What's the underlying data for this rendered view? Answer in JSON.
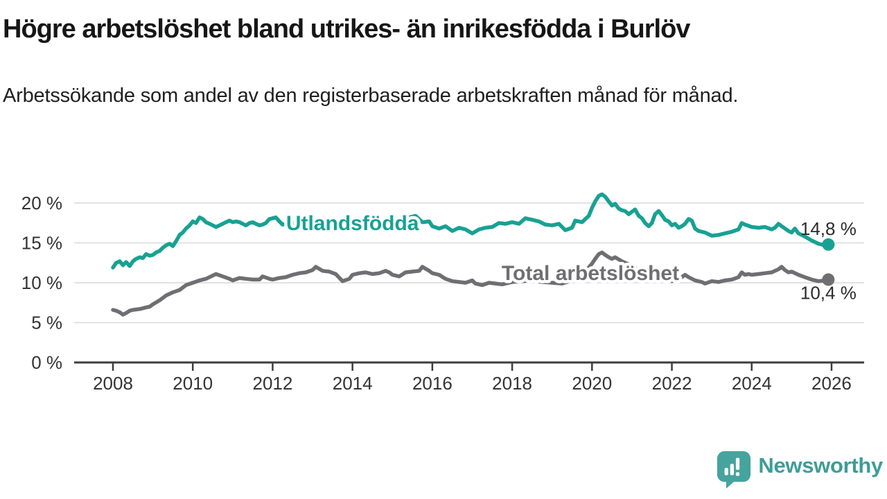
{
  "header": {
    "title": "Högre arbetslöshet bland utrikes- än inrikesfödda i Burlöv",
    "subtitle": "Arbetssökande som andel av den registerbaserade arbetskraften månad för månad."
  },
  "chart_data": {
    "type": "line",
    "title": "Högre arbetslöshet bland utrikes- än inrikesfödda i Burlöv",
    "subtitle": "Arbetssökande som andel av den registerbaserade arbetskraften månad för månad.",
    "grid": true,
    "legend_position": "inline-labels",
    "x_axis": {
      "label": "",
      "ticks": [
        2008,
        2010,
        2012,
        2014,
        2016,
        2018,
        2020,
        2022,
        2024,
        2026
      ],
      "tick_labels": [
        "2008",
        "2010",
        "2012",
        "2014",
        "2016",
        "2018",
        "2020",
        "2022",
        "2024",
        "2026"
      ],
      "range": [
        2007.05,
        2026.8
      ]
    },
    "y_axis": {
      "label": "",
      "unit": "%",
      "ticks": [
        0,
        5,
        10,
        15,
        20
      ],
      "tick_labels": [
        "0 %",
        "5 %",
        "10 %",
        "15 %",
        "20 %"
      ],
      "range": [
        0,
        22
      ]
    },
    "colors": {
      "utlandsfodda": "#18a193",
      "total": "#6f6f73",
      "grid": "#d9d9d9",
      "axis": "#3d3d3d",
      "tick_text": "#333333",
      "value_text": "#2b2b2b"
    },
    "series": [
      {
        "id": "total",
        "name": "Total arbetslöshet",
        "color": "#6f6f73",
        "inline_label": {
          "year": 2019.96,
          "value": 10.35
        },
        "end_label": "10,4 %",
        "end_value": 10.4,
        "value_label_dy": 28,
        "points": [
          [
            2008.0,
            6.6
          ],
          [
            2008.08,
            6.5
          ],
          [
            2008.17,
            6.3
          ],
          [
            2008.25,
            6.0
          ],
          [
            2008.33,
            6.2
          ],
          [
            2008.42,
            6.5
          ],
          [
            2008.5,
            6.6
          ],
          [
            2008.67,
            6.7
          ],
          [
            2008.83,
            6.9
          ],
          [
            2008.92,
            7.0
          ],
          [
            2009.0,
            7.3
          ],
          [
            2009.17,
            7.8
          ],
          [
            2009.33,
            8.4
          ],
          [
            2009.5,
            8.8
          ],
          [
            2009.67,
            9.1
          ],
          [
            2009.83,
            9.7
          ],
          [
            2010.0,
            10.0
          ],
          [
            2010.17,
            10.3
          ],
          [
            2010.33,
            10.5
          ],
          [
            2010.5,
            10.9
          ],
          [
            2010.58,
            11.1
          ],
          [
            2010.75,
            10.8
          ],
          [
            2010.92,
            10.5
          ],
          [
            2011.0,
            10.3
          ],
          [
            2011.17,
            10.6
          ],
          [
            2011.33,
            10.5
          ],
          [
            2011.5,
            10.4
          ],
          [
            2011.67,
            10.4
          ],
          [
            2011.75,
            10.8
          ],
          [
            2011.92,
            10.5
          ],
          [
            2012.0,
            10.4
          ],
          [
            2012.17,
            10.6
          ],
          [
            2012.33,
            10.7
          ],
          [
            2012.5,
            11.0
          ],
          [
            2012.67,
            11.2
          ],
          [
            2012.83,
            11.3
          ],
          [
            2013.0,
            11.6
          ],
          [
            2013.08,
            12.0
          ],
          [
            2013.25,
            11.5
          ],
          [
            2013.42,
            11.4
          ],
          [
            2013.58,
            11.1
          ],
          [
            2013.75,
            10.2
          ],
          [
            2013.92,
            10.5
          ],
          [
            2014.0,
            11.0
          ],
          [
            2014.17,
            11.2
          ],
          [
            2014.33,
            11.3
          ],
          [
            2014.5,
            11.1
          ],
          [
            2014.67,
            11.2
          ],
          [
            2014.83,
            11.5
          ],
          [
            2014.92,
            11.3
          ],
          [
            2015.0,
            11.0
          ],
          [
            2015.17,
            10.8
          ],
          [
            2015.33,
            11.3
          ],
          [
            2015.5,
            11.4
          ],
          [
            2015.67,
            11.5
          ],
          [
            2015.75,
            12.0
          ],
          [
            2015.92,
            11.5
          ],
          [
            2016.0,
            11.2
          ],
          [
            2016.17,
            11.0
          ],
          [
            2016.33,
            10.5
          ],
          [
            2016.5,
            10.2
          ],
          [
            2016.67,
            10.1
          ],
          [
            2016.83,
            10.0
          ],
          [
            2017.0,
            10.3
          ],
          [
            2017.08,
            9.9
          ],
          [
            2017.25,
            9.7
          ],
          [
            2017.42,
            10.0
          ],
          [
            2017.58,
            9.9
          ],
          [
            2017.75,
            9.8
          ],
          [
            2017.92,
            10.0
          ],
          [
            2018.0,
            10.1
          ],
          [
            2018.25,
            10.2
          ],
          [
            2018.5,
            10.3
          ],
          [
            2018.75,
            10.1
          ],
          [
            2019.0,
            10.0
          ],
          [
            2019.25,
            9.9
          ],
          [
            2019.5,
            10.3
          ],
          [
            2019.75,
            10.9
          ],
          [
            2020.0,
            12.4
          ],
          [
            2020.08,
            13.0
          ],
          [
            2020.17,
            13.6
          ],
          [
            2020.25,
            13.8
          ],
          [
            2020.33,
            13.5
          ],
          [
            2020.42,
            13.2
          ],
          [
            2020.5,
            13.0
          ],
          [
            2020.58,
            13.2
          ],
          [
            2020.75,
            12.7
          ],
          [
            2020.92,
            12.3
          ],
          [
            2021.0,
            12.0
          ],
          [
            2021.17,
            11.6
          ],
          [
            2021.33,
            11.2
          ],
          [
            2021.5,
            10.9
          ],
          [
            2021.67,
            10.6
          ],
          [
            2021.83,
            10.4
          ],
          [
            2022.0,
            10.2
          ],
          [
            2022.08,
            10.4
          ],
          [
            2022.25,
            10.7
          ],
          [
            2022.33,
            11.0
          ],
          [
            2022.42,
            10.7
          ],
          [
            2022.58,
            10.3
          ],
          [
            2022.75,
            10.1
          ],
          [
            2022.83,
            9.9
          ],
          [
            2023.0,
            10.2
          ],
          [
            2023.17,
            10.1
          ],
          [
            2023.33,
            10.3
          ],
          [
            2023.5,
            10.4
          ],
          [
            2023.67,
            10.7
          ],
          [
            2023.75,
            11.3
          ],
          [
            2023.83,
            11.0
          ],
          [
            2023.92,
            11.1
          ],
          [
            2024.0,
            11.0
          ],
          [
            2024.17,
            11.1
          ],
          [
            2024.33,
            11.2
          ],
          [
            2024.5,
            11.3
          ],
          [
            2024.67,
            11.7
          ],
          [
            2024.75,
            12.0
          ],
          [
            2024.83,
            11.6
          ],
          [
            2024.92,
            11.3
          ],
          [
            2025.0,
            11.4
          ],
          [
            2025.17,
            11.0
          ],
          [
            2025.33,
            10.7
          ],
          [
            2025.5,
            10.4
          ],
          [
            2025.67,
            10.2
          ],
          [
            2025.83,
            10.3
          ],
          [
            2025.92,
            10.4
          ]
        ]
      },
      {
        "id": "utlandsfodda",
        "name": "Utlandsfödda",
        "color": "#18a193",
        "inline_label": {
          "year": 2014.0,
          "value": 16.6
        },
        "end_label": "14,8 %",
        "end_value": 14.8,
        "value_label_dy": -14,
        "points": [
          [
            2008.0,
            11.9
          ],
          [
            2008.08,
            12.5
          ],
          [
            2008.17,
            12.7
          ],
          [
            2008.25,
            12.2
          ],
          [
            2008.33,
            12.6
          ],
          [
            2008.42,
            12.1
          ],
          [
            2008.5,
            12.7
          ],
          [
            2008.58,
            13.0
          ],
          [
            2008.67,
            13.2
          ],
          [
            2008.75,
            13.1
          ],
          [
            2008.83,
            13.6
          ],
          [
            2008.92,
            13.4
          ],
          [
            2009.0,
            13.5
          ],
          [
            2009.08,
            13.8
          ],
          [
            2009.17,
            14.0
          ],
          [
            2009.25,
            14.4
          ],
          [
            2009.33,
            14.7
          ],
          [
            2009.42,
            14.9
          ],
          [
            2009.5,
            14.6
          ],
          [
            2009.58,
            15.2
          ],
          [
            2009.67,
            16.0
          ],
          [
            2009.75,
            16.3
          ],
          [
            2009.83,
            16.8
          ],
          [
            2009.92,
            17.2
          ],
          [
            2010.0,
            17.7
          ],
          [
            2010.08,
            17.5
          ],
          [
            2010.17,
            18.2
          ],
          [
            2010.25,
            18.0
          ],
          [
            2010.33,
            17.6
          ],
          [
            2010.42,
            17.4
          ],
          [
            2010.5,
            17.2
          ],
          [
            2010.58,
            17.0
          ],
          [
            2010.67,
            17.2
          ],
          [
            2010.75,
            17.4
          ],
          [
            2010.83,
            17.6
          ],
          [
            2010.92,
            17.8
          ],
          [
            2011.0,
            17.6
          ],
          [
            2011.08,
            17.7
          ],
          [
            2011.17,
            17.6
          ],
          [
            2011.25,
            17.4
          ],
          [
            2011.33,
            17.2
          ],
          [
            2011.42,
            17.5
          ],
          [
            2011.5,
            17.6
          ],
          [
            2011.58,
            17.4
          ],
          [
            2011.67,
            17.2
          ],
          [
            2011.75,
            17.3
          ],
          [
            2011.83,
            17.5
          ],
          [
            2011.92,
            18.0
          ],
          [
            2012.0,
            18.1
          ],
          [
            2012.08,
            18.2
          ],
          [
            2012.17,
            17.7
          ],
          [
            2012.25,
            17.3
          ],
          [
            2012.33,
            17.4
          ],
          [
            2012.5,
            17.5
          ],
          [
            2012.67,
            17.4
          ],
          [
            2012.83,
            17.5
          ],
          [
            2013.0,
            17.5
          ],
          [
            2013.25,
            17.6
          ],
          [
            2013.5,
            17.4
          ],
          [
            2013.75,
            17.3
          ],
          [
            2014.0,
            17.5
          ],
          [
            2014.25,
            17.4
          ],
          [
            2014.5,
            17.6
          ],
          [
            2014.75,
            17.5
          ],
          [
            2015.0,
            17.6
          ],
          [
            2015.25,
            17.9
          ],
          [
            2015.42,
            18.2
          ],
          [
            2015.58,
            18.4
          ],
          [
            2015.75,
            17.6
          ],
          [
            2015.92,
            17.7
          ],
          [
            2016.0,
            17.1
          ],
          [
            2016.17,
            16.8
          ],
          [
            2016.33,
            17.1
          ],
          [
            2016.5,
            16.5
          ],
          [
            2016.67,
            16.9
          ],
          [
            2016.83,
            16.7
          ],
          [
            2017.0,
            16.2
          ],
          [
            2017.17,
            16.7
          ],
          [
            2017.33,
            16.9
          ],
          [
            2017.5,
            17.0
          ],
          [
            2017.67,
            17.5
          ],
          [
            2017.83,
            17.4
          ],
          [
            2018.0,
            17.6
          ],
          [
            2018.17,
            17.4
          ],
          [
            2018.33,
            18.1
          ],
          [
            2018.5,
            17.9
          ],
          [
            2018.67,
            17.7
          ],
          [
            2018.83,
            17.3
          ],
          [
            2019.0,
            17.2
          ],
          [
            2019.17,
            17.4
          ],
          [
            2019.33,
            16.6
          ],
          [
            2019.5,
            16.9
          ],
          [
            2019.58,
            17.8
          ],
          [
            2019.75,
            17.6
          ],
          [
            2019.92,
            18.4
          ],
          [
            2020.0,
            19.4
          ],
          [
            2020.08,
            20.2
          ],
          [
            2020.17,
            20.9
          ],
          [
            2020.25,
            21.1
          ],
          [
            2020.33,
            20.8
          ],
          [
            2020.42,
            20.2
          ],
          [
            2020.5,
            19.7
          ],
          [
            2020.58,
            19.9
          ],
          [
            2020.67,
            19.3
          ],
          [
            2020.75,
            19.1
          ],
          [
            2020.83,
            19.0
          ],
          [
            2020.92,
            18.6
          ],
          [
            2021.0,
            18.9
          ],
          [
            2021.08,
            19.2
          ],
          [
            2021.17,
            18.4
          ],
          [
            2021.25,
            18.1
          ],
          [
            2021.33,
            17.5
          ],
          [
            2021.42,
            17.1
          ],
          [
            2021.5,
            17.5
          ],
          [
            2021.58,
            18.6
          ],
          [
            2021.67,
            19.0
          ],
          [
            2021.75,
            18.5
          ],
          [
            2021.83,
            17.9
          ],
          [
            2021.92,
            17.7
          ],
          [
            2022.0,
            17.2
          ],
          [
            2022.08,
            17.4
          ],
          [
            2022.17,
            16.9
          ],
          [
            2022.25,
            17.1
          ],
          [
            2022.33,
            17.4
          ],
          [
            2022.42,
            18.0
          ],
          [
            2022.5,
            17.8
          ],
          [
            2022.58,
            16.8
          ],
          [
            2022.67,
            16.5
          ],
          [
            2022.83,
            16.3
          ],
          [
            2023.0,
            15.9
          ],
          [
            2023.17,
            16.0
          ],
          [
            2023.33,
            16.2
          ],
          [
            2023.5,
            16.4
          ],
          [
            2023.67,
            16.7
          ],
          [
            2023.75,
            17.5
          ],
          [
            2023.83,
            17.3
          ],
          [
            2024.0,
            17.0
          ],
          [
            2024.17,
            16.9
          ],
          [
            2024.33,
            17.0
          ],
          [
            2024.5,
            16.7
          ],
          [
            2024.58,
            16.9
          ],
          [
            2024.67,
            17.4
          ],
          [
            2024.75,
            17.1
          ],
          [
            2024.92,
            16.5
          ],
          [
            2025.0,
            16.3
          ],
          [
            2025.08,
            16.8
          ],
          [
            2025.17,
            16.2
          ],
          [
            2025.33,
            15.8
          ],
          [
            2025.5,
            15.3
          ],
          [
            2025.67,
            14.9
          ],
          [
            2025.83,
            14.7
          ],
          [
            2025.92,
            14.8
          ]
        ]
      }
    ]
  },
  "footer": {
    "brand": "Newsworthy",
    "brand_color": "#3d9d97",
    "icon": "newsworthy-speech-bubble-barchart-icon"
  }
}
